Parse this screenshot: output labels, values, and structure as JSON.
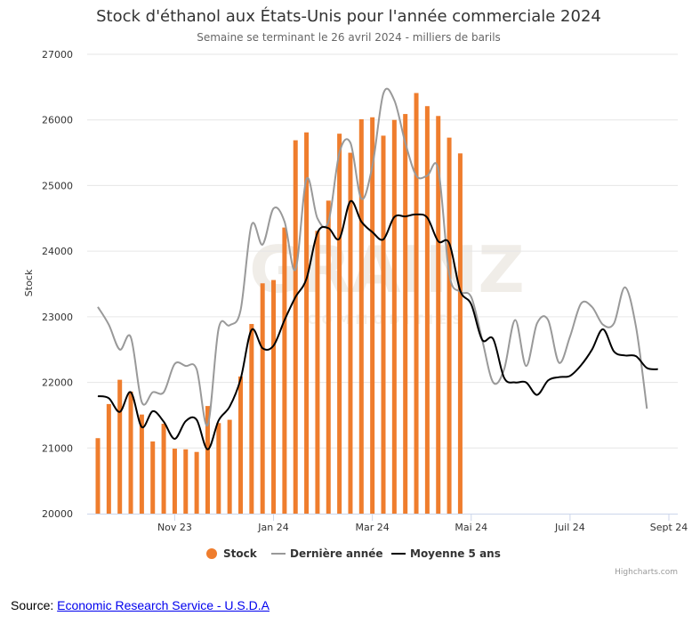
{
  "chart_data": {
    "type": "bar+line",
    "title": "Stock d'éthanol aux États-Unis pour l'année commerciale 2024",
    "subtitle": "Semaine se terminant le 26 avril 2024 - milliers de barils",
    "ylabel": "Stock",
    "xlabel": "",
    "ylim": [
      20000,
      27000
    ],
    "y_ticks": [
      20000,
      21000,
      22000,
      23000,
      24000,
      25000,
      26000,
      27000
    ],
    "x_ticks": [
      {
        "label": "Nov 23",
        "week": 8
      },
      {
        "label": "Jan 24",
        "week": 17
      },
      {
        "label": "Mar 24",
        "week": 26
      },
      {
        "label": "Mai 24",
        "week": 35
      },
      {
        "label": "Juil 24",
        "week": 44
      },
      {
        "label": "Sept 24",
        "week": 53
      }
    ],
    "week_count": 54,
    "grid": true,
    "legend_position": "bottom-center",
    "series": [
      {
        "name": "Stock",
        "kind": "bar",
        "color": "#ef7d2d",
        "weeks": [
          1,
          2,
          3,
          4,
          5,
          6,
          7,
          8,
          9,
          10,
          11,
          12,
          13,
          14,
          15,
          16,
          17,
          18,
          19,
          20,
          21,
          22,
          23,
          24,
          25,
          26,
          27,
          28,
          29,
          30,
          31,
          32,
          33,
          34
        ],
        "values": [
          21150,
          21670,
          22040,
          21860,
          21510,
          21100,
          21370,
          20990,
          20980,
          20940,
          21640,
          21380,
          21430,
          22090,
          22890,
          23510,
          23560,
          24360,
          25690,
          25810,
          24310,
          24770,
          25790,
          25500,
          26010,
          26040,
          25760,
          26000,
          26090,
          26410,
          26210,
          26060,
          25730,
          25490
        ]
      },
      {
        "name": "Dernière année",
        "kind": "line",
        "color": "#999999",
        "values": [
          23150,
          22880,
          22500,
          22690,
          21700,
          21850,
          21850,
          22280,
          22250,
          22200,
          21350,
          22820,
          22870,
          23100,
          24400,
          24100,
          24650,
          24450,
          23720,
          25100,
          24500,
          24450,
          25500,
          25650,
          24800,
          25300,
          26400,
          26300,
          25650,
          25150,
          25150,
          25250,
          23650,
          23380,
          23300,
          22650,
          22000,
          22200,
          22950,
          22250,
          22900,
          22950,
          22300,
          22700,
          23200,
          23150,
          22880,
          22900,
          23450,
          22850,
          21600
        ],
        "weeks_from": 1
      },
      {
        "name": "Moyenne 5 ans",
        "kind": "line",
        "color": "#000000",
        "values": [
          21790,
          21760,
          21550,
          21850,
          21320,
          21560,
          21400,
          21140,
          21410,
          21430,
          20980,
          21420,
          21630,
          22050,
          22800,
          22520,
          22560,
          22950,
          23300,
          23580,
          24280,
          24350,
          24190,
          24760,
          24450,
          24290,
          24180,
          24520,
          24530,
          24560,
          24510,
          24150,
          24120,
          23400,
          23190,
          22650,
          22660,
          22070,
          22000,
          22000,
          21810,
          22030,
          22080,
          22100,
          22260,
          22500,
          22810,
          22470,
          22410,
          22400,
          22220,
          22200
        ],
        "weeks_from": 1
      }
    ],
    "credits": "Highcharts.com",
    "watermark_text": "GRAINZ",
    "watermark_sub": "COMMODITIES"
  },
  "legend": {
    "stock": "Stock",
    "last_year": "Dernière année",
    "five_year": "Moyenne 5 ans"
  },
  "source": {
    "prefix": "Source: ",
    "link_text": "Economic Research Service - U.S.D.A"
  }
}
